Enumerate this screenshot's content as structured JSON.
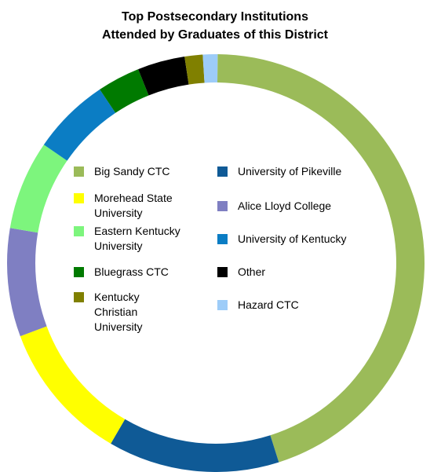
{
  "chart_data": {
    "type": "pie",
    "variant": "donut",
    "title": [
      "Top Postsecondary Institutions",
      "Attended by Graduates of this District"
    ],
    "legend_placement": "inside center, two columns",
    "categories": [
      "Big Sandy CTC",
      "University of Pikeville",
      "Morehead State University",
      "Alice Lloyd College",
      "Eastern Kentucky University",
      "University of Kentucky",
      "Bluegrass CTC",
      "Other",
      "Kentucky Christian University",
      "Hazard CTC"
    ],
    "values": [
      51.5,
      15.2,
      12.5,
      9.6,
      7.9,
      6.9,
      3.8,
      4.2,
      1.6,
      1.3
    ],
    "colors": [
      "#9BBB59",
      "#0F5A96",
      "#FFFF00",
      "#7F7FC2",
      "#7DF57D",
      "#0B7DC4",
      "#007A00",
      "#000000",
      "#808000",
      "#9DCCF8"
    ]
  },
  "legend": {
    "left": [
      {
        "label": "Big Sandy CTC",
        "color": "#9BBB59"
      },
      {
        "label": "Morehead State University",
        "color": "#FFFF00"
      },
      {
        "label": "Eastern Kentucky University",
        "color": "#7DF57D"
      },
      {
        "label": "Bluegrass CTC",
        "color": "#007A00"
      },
      {
        "label": "Kentucky Christian University",
        "color": "#808000"
      }
    ],
    "right": [
      {
        "label": "University of Pikeville",
        "color": "#0F5A96"
      },
      {
        "label": "Alice Lloyd College",
        "color": "#7F7FC2"
      },
      {
        "label": "University of Kentucky",
        "color": "#0B7DC4"
      },
      {
        "label": "Other",
        "color": "#000000"
      },
      {
        "label": "Hazard CTC",
        "color": "#9DCCF8"
      }
    ]
  }
}
